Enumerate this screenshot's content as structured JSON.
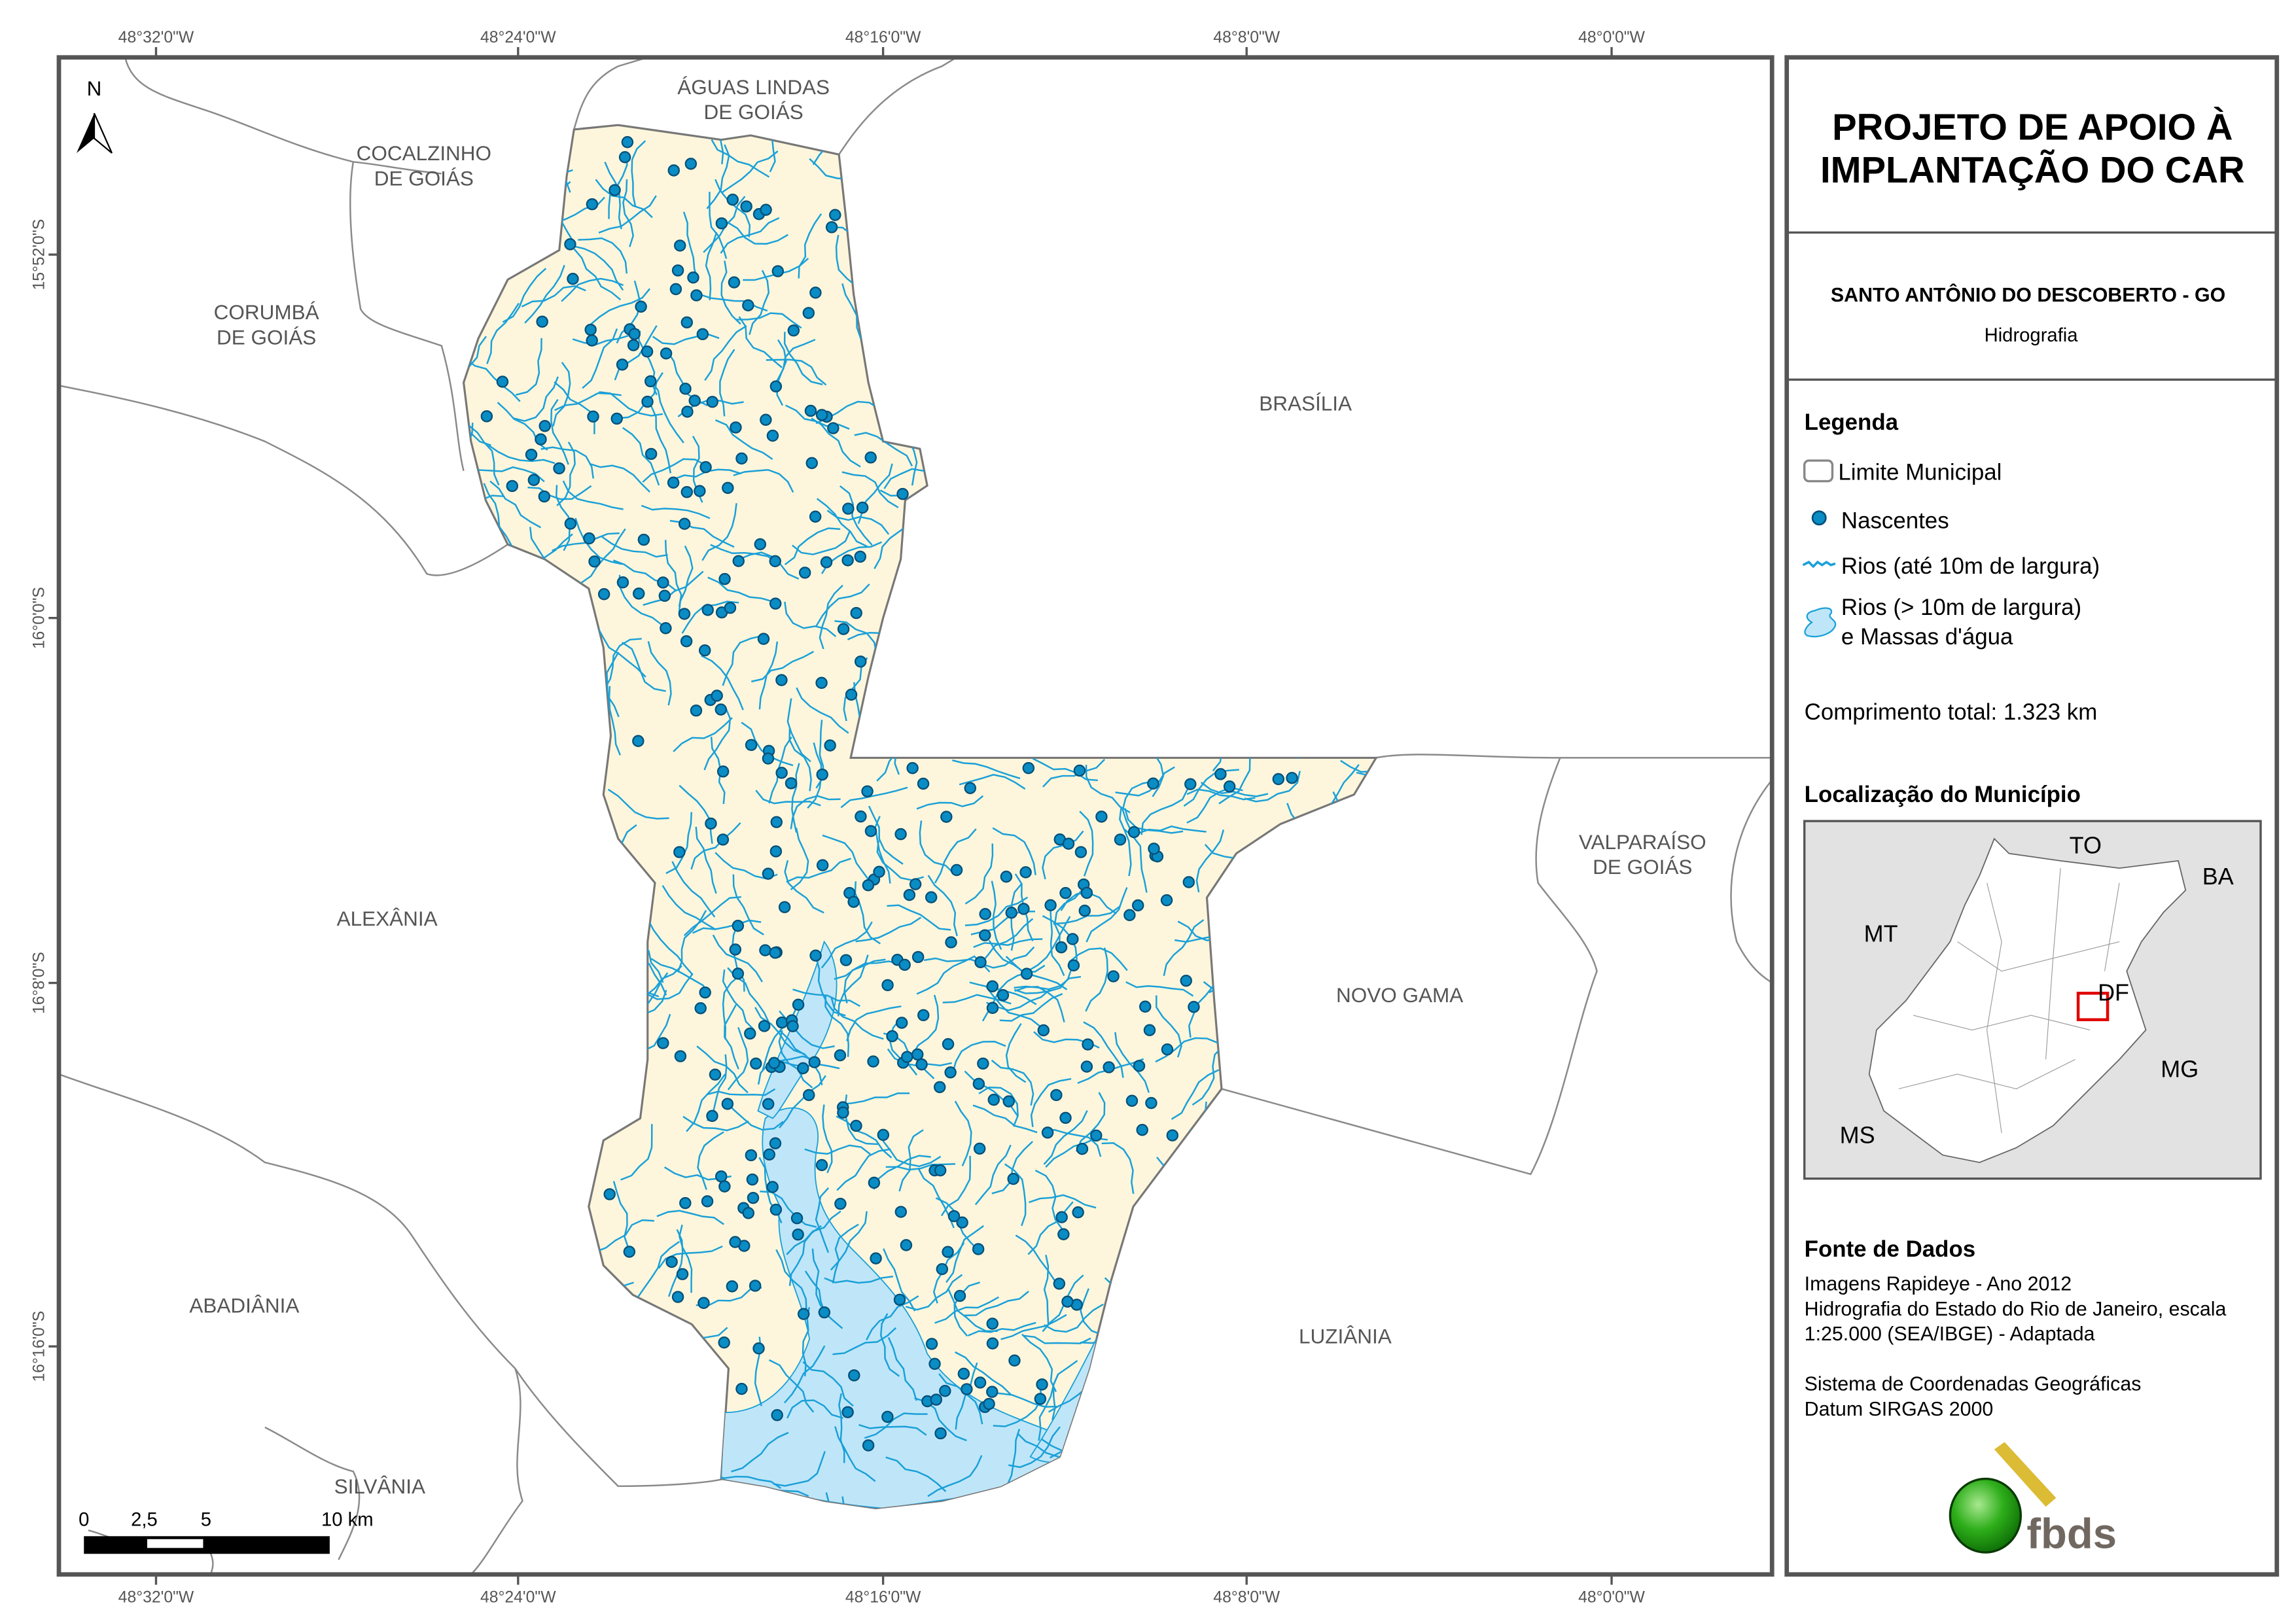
{
  "grid": {
    "longitudes": [
      "48°32'0\"W",
      "48°24'0\"W",
      "48°16'0\"W",
      "48°8'0\"W",
      "48°0'0\"W"
    ],
    "latitudes": [
      "15°52'0\"S",
      "16°0'0\"S",
      "16°8'0\"S",
      "16°16'0\"S"
    ]
  },
  "north_arrow": {
    "label": "N"
  },
  "municipalities": {
    "aguas_lindas": [
      "ÁGUAS LINDAS",
      "DE GOIÁS"
    ],
    "cocalzinho": [
      "COCALZINHO",
      "DE GOIÁS"
    ],
    "corumba": [
      "CORUMBÁ",
      "DE GOIÁS"
    ],
    "brasilia": "BRASÍLIA",
    "alexania": "ALEXÂNIA",
    "valparaiso": [
      "VALPARAÍSO",
      "DE GOIÁS"
    ],
    "novo_gama": "NOVO GAMA",
    "abadiania": "ABADIÂNIA",
    "luziania": "LUZIÂNIA",
    "silvania": "SILVÂNIA"
  },
  "scale_bar": {
    "labels": [
      "0",
      "2,5",
      "5",
      "10 km"
    ]
  },
  "panel": {
    "title": [
      "PROJETO DE APOIO À",
      "IMPLANTAÇÃO DO CAR"
    ],
    "municipality": "SANTO ANTÔNIO DO DESCOBERTO - GO",
    "theme": "Hidrografia",
    "legend": {
      "title": "Legenda",
      "items": [
        {
          "label": "Limite Municipal",
          "icon": "municipal-boundary-icon"
        },
        {
          "label": "Nascentes",
          "icon": "spring-point-icon"
        },
        {
          "label": "Rios (até 10m de largura)",
          "icon": "river-line-icon"
        },
        {
          "label": "Rios (> 10m de largura)",
          "label2": "e Massas d'água",
          "icon": "water-body-icon"
        }
      ],
      "total_length": "Comprimento total: 1.323 km"
    },
    "location": {
      "title": "Localização do Município",
      "labels": [
        "TO",
        "BA",
        "MT",
        "DF",
        "MG",
        "MS"
      ]
    },
    "sources": {
      "title": "Fonte de Dados",
      "lines": [
        "Imagens Rapideye - Ano 2012",
        "Hidrografia do Estado do Rio de Janeiro, escala",
        "1:25.000 (SEA/IBGE) - Adaptada",
        "Sistema de Coordenadas Geográficas",
        "Datum SIRGAS 2000"
      ]
    },
    "logo": "fbds"
  },
  "colors": {
    "municipality_fill": "#fdf6dc",
    "river": "#1aa0d8",
    "spring_fill": "#0a8cc4",
    "spring_stroke": "#064f78",
    "water_body": "#bfe6f8",
    "locator_mark": "#e00000"
  }
}
